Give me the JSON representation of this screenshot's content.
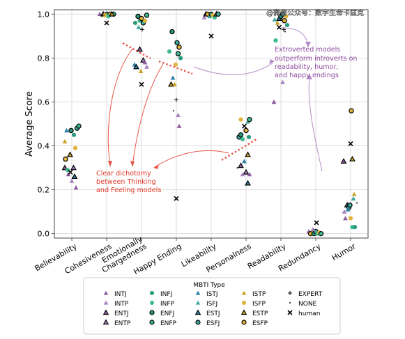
{
  "watermark": "@微信公众号：数字生命卡兹克",
  "chart_data": {
    "type": "scatter",
    "ylabel": "Average Score",
    "xlabel": "",
    "ylim": [
      -0.02,
      1.02
    ],
    "y_ticks": [
      "0.0",
      "0.2",
      "0.4",
      "0.6",
      "0.8",
      "1.0"
    ],
    "y_tick_values": [
      0,
      0.2,
      0.4,
      0.6,
      0.8,
      1.0
    ],
    "grid": true,
    "categories": [
      "Believability",
      "Cohesiveness",
      "Emotionally\nChargedness",
      "Happy Ending",
      "Likeability",
      "Personalness",
      "Readability",
      "Redundancy",
      "Humor"
    ],
    "legend": {
      "title": "MBTI Type",
      "placement": "bottom-center",
      "entries": [
        {
          "label": "INTJ",
          "marker": "triangle",
          "color": "#8e5ea2",
          "edge": "none"
        },
        {
          "label": "INTP",
          "marker": "triangle",
          "color": "#a882c0",
          "edge": "none"
        },
        {
          "label": "ENTJ",
          "marker": "triangle",
          "color": "#8e5ea2",
          "edge": "#000000"
        },
        {
          "label": "ENTP",
          "marker": "triangle",
          "color": "#a882c0",
          "edge": "#000000"
        },
        {
          "label": "INFJ",
          "marker": "circle",
          "color": "#2a9a7f",
          "edge": "none"
        },
        {
          "label": "INFP",
          "marker": "circle",
          "color": "#3fb98f",
          "edge": "none"
        },
        {
          "label": "ENFJ",
          "marker": "circle",
          "color": "#2a9a7f",
          "edge": "#000000"
        },
        {
          "label": "ENFP",
          "marker": "circle",
          "color": "#3fb98f",
          "edge": "#000000"
        },
        {
          "label": "ISTJ",
          "marker": "triangle",
          "color": "#2b7fa6",
          "edge": "none"
        },
        {
          "label": "ISFJ",
          "marker": "triangle",
          "color": "#3fa99f",
          "edge": "none"
        },
        {
          "label": "ESTJ",
          "marker": "triangle",
          "color": "#2b7fa6",
          "edge": "#000000"
        },
        {
          "label": "ESFJ",
          "marker": "circle",
          "color": "#3fa99f",
          "edge": "#000000"
        },
        {
          "label": "ISTP",
          "marker": "triangle",
          "color": "#c9a227",
          "edge": "none"
        },
        {
          "label": "ISFP",
          "marker": "circle",
          "color": "#e0b43a",
          "edge": "none"
        },
        {
          "label": "ESTP",
          "marker": "triangle",
          "color": "#c9a227",
          "edge": "#000000"
        },
        {
          "label": "ESFP",
          "marker": "circle",
          "color": "#e0b43a",
          "edge": "#000000"
        },
        {
          "label": "EXPERT",
          "marker": "plus",
          "color": "#000000",
          "edge": "none"
        },
        {
          "label": "NONE",
          "marker": "dot",
          "color": "#000000",
          "edge": "none"
        },
        {
          "label": "human",
          "marker": "x",
          "color": "#000000",
          "edge": "none"
        }
      ]
    },
    "annotations": [
      {
        "text": "Extroverted models\noutperform introverts on\nreadability, humor,\nand happy endings",
        "color": "#8e4aa0"
      },
      {
        "text": "Clear dichotomy\nbetween Thinking\nand Feeling models",
        "color": "#e03a2a"
      }
    ],
    "points": [
      {
        "c": 0,
        "o": -0.2,
        "y": 0.3,
        "t": "ENTJ"
      },
      {
        "c": 0,
        "o": 0.05,
        "y": 0.3,
        "t": "ENTP"
      },
      {
        "c": 0,
        "o": -0.1,
        "y": 0.27,
        "t": "INTJ"
      },
      {
        "c": 0,
        "o": 0.0,
        "y": 0.24,
        "t": "INTP"
      },
      {
        "c": 0,
        "o": 0.12,
        "y": 0.21,
        "t": "INTJ"
      },
      {
        "c": 0,
        "o": -0.18,
        "y": 0.34,
        "t": "ESFP"
      },
      {
        "c": 0,
        "o": 0.1,
        "y": 0.39,
        "t": "ISFP"
      },
      {
        "c": 0,
        "o": -0.2,
        "y": 0.42,
        "t": "ISTP"
      },
      {
        "c": 0,
        "o": -0.05,
        "y": 0.36,
        "t": "ESTP"
      },
      {
        "c": 0,
        "o": -0.15,
        "y": 0.47,
        "t": "ISTJ"
      },
      {
        "c": 0,
        "o": -0.02,
        "y": 0.47,
        "t": "ENFJ"
      },
      {
        "c": 0,
        "o": 0.15,
        "y": 0.48,
        "t": "ESFJ"
      },
      {
        "c": 0,
        "o": 0.2,
        "y": 0.49,
        "t": "ENFP"
      },
      {
        "c": 0,
        "o": 0.06,
        "y": 0.45,
        "t": "INFJ"
      },
      {
        "c": 0,
        "o": -0.12,
        "y": 0.29,
        "t": "INFP"
      },
      {
        "c": 0,
        "o": -0.04,
        "y": 0.28,
        "t": "human"
      },
      {
        "c": 0,
        "o": 0.08,
        "y": 0.26,
        "t": "ESTJ"
      },
      {
        "c": 1,
        "o": -0.2,
        "y": 1.0,
        "t": "INTJ"
      },
      {
        "c": 1,
        "o": -0.1,
        "y": 1.0,
        "t": "ENTJ"
      },
      {
        "c": 1,
        "o": 0.0,
        "y": 1.0,
        "t": "ENFJ"
      },
      {
        "c": 1,
        "o": 0.1,
        "y": 1.0,
        "t": "ESFP"
      },
      {
        "c": 1,
        "o": 0.2,
        "y": 1.0,
        "t": "ENFP"
      },
      {
        "c": 1,
        "o": -0.05,
        "y": 0.995,
        "t": "ISFP"
      },
      {
        "c": 1,
        "o": 0.05,
        "y": 0.99,
        "t": "INFP"
      },
      {
        "c": 1,
        "o": 0.15,
        "y": 1.0,
        "t": "ESTP"
      },
      {
        "c": 1,
        "o": -0.12,
        "y": 0.995,
        "t": "EXPERT"
      },
      {
        "c": 1,
        "o": 0.0,
        "y": 0.96,
        "t": "human"
      },
      {
        "c": 2,
        "o": -0.2,
        "y": 0.77,
        "t": "ISTJ"
      },
      {
        "c": 2,
        "o": -0.15,
        "y": 0.76,
        "t": "ESTJ"
      },
      {
        "c": 2,
        "o": -0.05,
        "y": 0.84,
        "t": "ENTJ"
      },
      {
        "c": 2,
        "o": 0.05,
        "y": 0.79,
        "t": "ENTP"
      },
      {
        "c": 2,
        "o": 0.1,
        "y": 0.78,
        "t": "INTJ"
      },
      {
        "c": 2,
        "o": 0.15,
        "y": 0.76,
        "t": "INTP"
      },
      {
        "c": 2,
        "o": -0.02,
        "y": 0.74,
        "t": "ISTP"
      },
      {
        "c": 2,
        "o": 0.0,
        "y": 0.68,
        "t": "human"
      },
      {
        "c": 2,
        "o": -0.18,
        "y": 0.96,
        "t": "INFJ"
      },
      {
        "c": 2,
        "o": -0.1,
        "y": 0.99,
        "t": "ENFJ"
      },
      {
        "c": 2,
        "o": -0.05,
        "y": 0.97,
        "t": "INFP"
      },
      {
        "c": 2,
        "o": 0.0,
        "y": 0.98,
        "t": "ESFP"
      },
      {
        "c": 2,
        "o": 0.05,
        "y": 0.96,
        "t": "ESFJ"
      },
      {
        "c": 2,
        "o": 0.1,
        "y": 0.97,
        "t": "ISFP"
      },
      {
        "c": 2,
        "o": 0.15,
        "y": 0.995,
        "t": "ENFP"
      },
      {
        "c": 2,
        "o": -0.08,
        "y": 0.94,
        "t": "ISFJ"
      },
      {
        "c": 2,
        "o": 0.02,
        "y": 0.93,
        "t": "EXPERT"
      },
      {
        "c": 3,
        "o": -0.2,
        "y": 0.83,
        "t": "INFP"
      },
      {
        "c": 3,
        "o": -0.15,
        "y": 0.68,
        "t": "ESTP"
      },
      {
        "c": 3,
        "o": -0.1,
        "y": 0.71,
        "t": "ISTJ"
      },
      {
        "c": 3,
        "o": -0.05,
        "y": 0.68,
        "t": "ISTP"
      },
      {
        "c": 3,
        "o": 0.0,
        "y": 0.61,
        "t": "EXPERT"
      },
      {
        "c": 3,
        "o": 0.05,
        "y": 0.54,
        "t": "INTP"
      },
      {
        "c": 3,
        "o": 0.08,
        "y": 0.49,
        "t": "INTJ"
      },
      {
        "c": 3,
        "o": -0.08,
        "y": 0.56,
        "t": "NONE"
      },
      {
        "c": 3,
        "o": -0.12,
        "y": 0.92,
        "t": "ENFJ"
      },
      {
        "c": 3,
        "o": 0.02,
        "y": 0.87,
        "t": "ESFJ"
      },
      {
        "c": 3,
        "o": 0.08,
        "y": 0.85,
        "t": "ESFP"
      },
      {
        "c": 3,
        "o": 0.12,
        "y": 0.8,
        "t": "INFJ"
      },
      {
        "c": 3,
        "o": 0.05,
        "y": 0.82,
        "t": "ENFP"
      },
      {
        "c": 3,
        "o": -0.02,
        "y": 0.77,
        "t": "ISFP"
      },
      {
        "c": 3,
        "o": 0.0,
        "y": 0.16,
        "t": "human"
      },
      {
        "c": 4,
        "o": -0.2,
        "y": 0.985,
        "t": "INTP"
      },
      {
        "c": 4,
        "o": -0.15,
        "y": 1.0,
        "t": "ENTJ"
      },
      {
        "c": 4,
        "o": -0.1,
        "y": 1.0,
        "t": "ESFP"
      },
      {
        "c": 4,
        "o": -0.05,
        "y": 0.99,
        "t": "ISFJ"
      },
      {
        "c": 4,
        "o": 0.0,
        "y": 1.0,
        "t": "ENFJ"
      },
      {
        "c": 4,
        "o": 0.05,
        "y": 0.995,
        "t": "ISFP"
      },
      {
        "c": 4,
        "o": 0.1,
        "y": 0.985,
        "t": "INFP"
      },
      {
        "c": 4,
        "o": 0.15,
        "y": 1.0,
        "t": "ESTP"
      },
      {
        "c": 4,
        "o": 0.2,
        "y": 1.0,
        "t": "ESFJ"
      },
      {
        "c": 4,
        "o": 0.0,
        "y": 0.9,
        "t": "human"
      },
      {
        "c": 5,
        "o": -0.2,
        "y": 0.44,
        "t": "ESFJ"
      },
      {
        "c": 5,
        "o": -0.15,
        "y": 0.45,
        "t": "ENFJ"
      },
      {
        "c": 5,
        "o": -0.1,
        "y": 0.43,
        "t": "INFP"
      },
      {
        "c": 5,
        "o": -0.05,
        "y": 0.49,
        "t": "human"
      },
      {
        "c": 5,
        "o": 0.05,
        "y": 0.51,
        "t": "ISFJ"
      },
      {
        "c": 5,
        "o": 0.1,
        "y": 0.52,
        "t": "ENFP"
      },
      {
        "c": 5,
        "o": -0.15,
        "y": 0.52,
        "t": "ISFP"
      },
      {
        "c": 5,
        "o": 0.0,
        "y": 0.47,
        "t": "ESFP"
      },
      {
        "c": 5,
        "o": 0.08,
        "y": 0.44,
        "t": "INFJ"
      },
      {
        "c": 5,
        "o": -0.25,
        "y": 0.3,
        "t": "NONE"
      },
      {
        "c": 5,
        "o": -0.15,
        "y": 0.31,
        "t": "ENTJ"
      },
      {
        "c": 5,
        "o": -0.05,
        "y": 0.33,
        "t": "ISTJ"
      },
      {
        "c": 5,
        "o": 0.05,
        "y": 0.36,
        "t": "ESTP"
      },
      {
        "c": 5,
        "o": 0.0,
        "y": 0.28,
        "t": "ENTP"
      },
      {
        "c": 5,
        "o": -0.1,
        "y": 0.27,
        "t": "INTP"
      },
      {
        "c": 5,
        "o": 0.1,
        "y": 0.27,
        "t": "INTJ"
      },
      {
        "c": 5,
        "o": 0.05,
        "y": 0.23,
        "t": "ESTJ"
      },
      {
        "c": 6,
        "o": -0.2,
        "y": 0.6,
        "t": "INTJ"
      },
      {
        "c": 6,
        "o": 0.05,
        "y": 0.69,
        "t": "INTP"
      },
      {
        "c": 6,
        "o": -0.15,
        "y": 0.88,
        "t": "INFP"
      },
      {
        "c": 6,
        "o": -0.1,
        "y": 0.96,
        "t": "ISTP"
      },
      {
        "c": 6,
        "o": -0.05,
        "y": 0.98,
        "t": "ESTJ"
      },
      {
        "c": 6,
        "o": 0.0,
        "y": 0.99,
        "t": "ENFJ"
      },
      {
        "c": 6,
        "o": 0.05,
        "y": 1.0,
        "t": "ESFJ"
      },
      {
        "c": 6,
        "o": 0.1,
        "y": 0.97,
        "t": "ESFP"
      },
      {
        "c": 6,
        "o": -0.05,
        "y": 0.94,
        "t": "human"
      },
      {
        "c": 6,
        "o": 0.08,
        "y": 0.93,
        "t": "EXPERT"
      },
      {
        "c": 6,
        "o": 0.12,
        "y": 0.92,
        "t": "NONE"
      },
      {
        "c": 6,
        "o": 0.15,
        "y": 0.99,
        "t": "ISFP"
      },
      {
        "c": 6,
        "o": -0.18,
        "y": 0.975,
        "t": "ISFJ"
      },
      {
        "c": 6,
        "o": 0.18,
        "y": 0.95,
        "t": "INFJ"
      },
      {
        "c": 7,
        "o": -0.2,
        "y": 0.01,
        "t": "INTJ"
      },
      {
        "c": 7,
        "o": -0.15,
        "y": 0.0,
        "t": "ESFP"
      },
      {
        "c": 7,
        "o": -0.1,
        "y": 0.005,
        "t": "ISTP"
      },
      {
        "c": 7,
        "o": -0.05,
        "y": 0.0,
        "t": "ENFJ"
      },
      {
        "c": 7,
        "o": 0.0,
        "y": 0.01,
        "t": "ESFJ"
      },
      {
        "c": 7,
        "o": 0.05,
        "y": 0.0,
        "t": "INFP"
      },
      {
        "c": 7,
        "o": 0.1,
        "y": 0.005,
        "t": "ISFP"
      },
      {
        "c": 7,
        "o": 0.15,
        "y": 0.0,
        "t": "ENFP"
      },
      {
        "c": 7,
        "o": 0.02,
        "y": 0.05,
        "t": "human"
      },
      {
        "c": 7,
        "o": -0.08,
        "y": 0.02,
        "t": "INTP"
      },
      {
        "c": 8,
        "o": -0.2,
        "y": 0.33,
        "t": "ENTJ"
      },
      {
        "c": 8,
        "o": -0.1,
        "y": 0.13,
        "t": "ESTJ"
      },
      {
        "c": 8,
        "o": -0.05,
        "y": 0.12,
        "t": "ENFJ"
      },
      {
        "c": 8,
        "o": 0.0,
        "y": 0.41,
        "t": "human"
      },
      {
        "c": 8,
        "o": 0.05,
        "y": 0.34,
        "t": "ESTP"
      },
      {
        "c": 8,
        "o": 0.02,
        "y": 0.56,
        "t": "ESFP"
      },
      {
        "c": 8,
        "o": 0.1,
        "y": 0.18,
        "t": "ISTP"
      },
      {
        "c": 8,
        "o": 0.08,
        "y": 0.16,
        "t": "ISFJ"
      },
      {
        "c": 8,
        "o": -0.18,
        "y": 0.1,
        "t": "INTP"
      },
      {
        "c": 8,
        "o": -0.15,
        "y": 0.07,
        "t": "INTJ"
      },
      {
        "c": 8,
        "o": -0.08,
        "y": 0.11,
        "t": "ISTJ"
      },
      {
        "c": 8,
        "o": 0.0,
        "y": 0.07,
        "t": "ISFP"
      },
      {
        "c": 8,
        "o": 0.05,
        "y": 0.03,
        "t": "INFP"
      },
      {
        "c": 8,
        "o": 0.12,
        "y": 0.03,
        "t": "INFJ"
      },
      {
        "c": 8,
        "o": 0.18,
        "y": 0.14,
        "t": "NONE"
      },
      {
        "c": 8,
        "o": -0.02,
        "y": 0.13,
        "t": "ESFJ"
      }
    ]
  }
}
